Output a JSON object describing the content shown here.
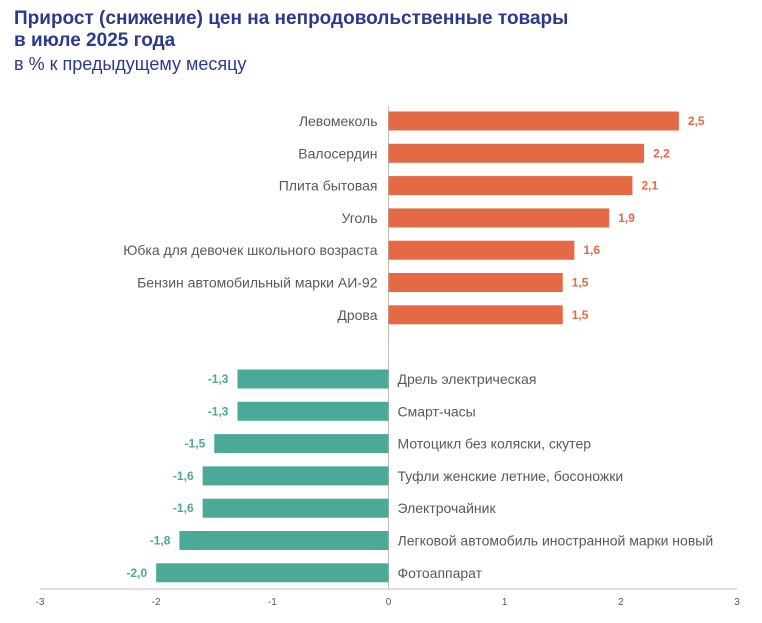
{
  "chart_data": {
    "type": "bar",
    "orientation": "horizontal",
    "title_line1": "Прирост (снижение) цен на непродовольственные товары",
    "title_line2": "в июле 2025 года",
    "subtitle": "в % к предыдущему месяцу",
    "categories": [
      "Левомеколь",
      "Валосердин",
      "Плита бытовая",
      "Уголь",
      "Юбка для девочек школьного возраста",
      "Бензин автомобильный марки АИ-92",
      "Дрова",
      "Дрель электрическая",
      "Смарт-часы",
      "Мотоцикл без коляски, скутер",
      "Туфли  женские летние, босоножки",
      "Электрочайник",
      "Легковой автомобиль иностранной марки новый",
      "Фотоаппарат"
    ],
    "values": [
      2.5,
      2.2,
      2.1,
      1.9,
      1.6,
      1.5,
      1.5,
      -1.3,
      -1.3,
      -1.5,
      -1.6,
      -1.6,
      -1.8,
      -2.0
    ],
    "value_labels": [
      "2,5",
      "2,2",
      "2,1",
      "1,9",
      "1,6",
      "1,5",
      "1,5",
      "-1,3",
      "-1,3",
      "-1,5",
      "-1,6",
      "-1,6",
      "-1,8",
      "-2,0"
    ],
    "xlim": [
      -3,
      3
    ],
    "xticks": [
      "-3",
      "-2",
      "-1",
      "0",
      "1",
      "2",
      "3"
    ],
    "xtick_values": [
      -3,
      -2,
      -1,
      0,
      1,
      2,
      3
    ],
    "colors": {
      "positive": "#e36a45",
      "negative": "#4aa997",
      "title": "#2b3a8c",
      "axis": "#bfbfbf",
      "text": "#595959"
    }
  }
}
